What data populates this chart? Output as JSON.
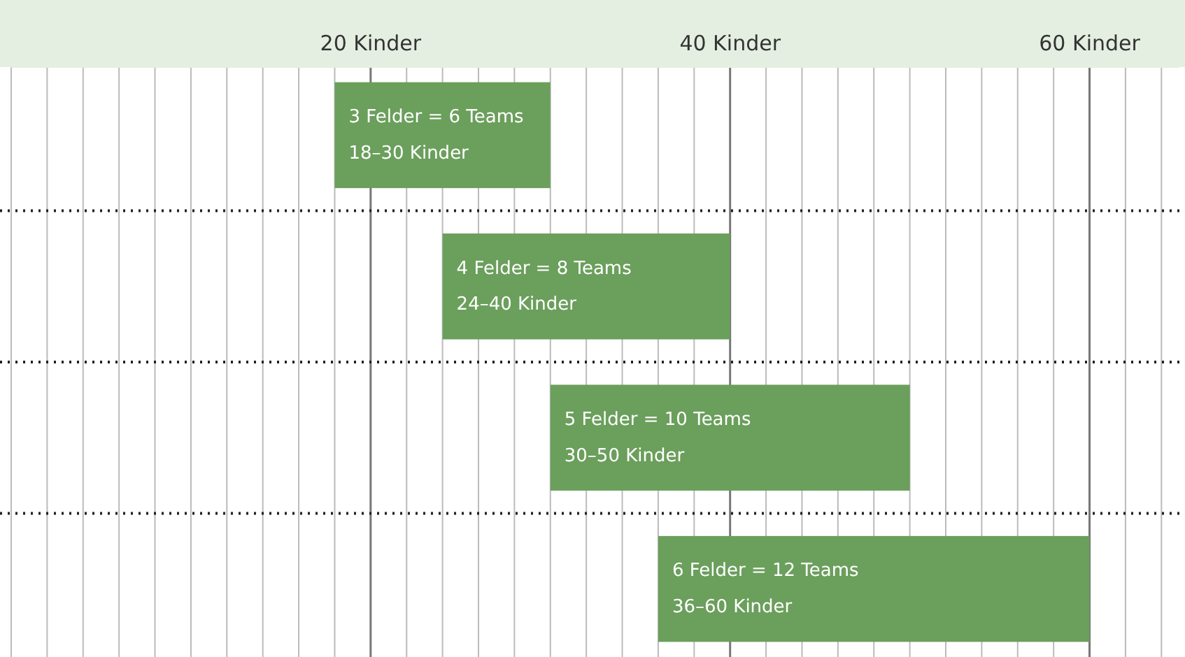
{
  "chart_data": {
    "type": "bar",
    "orientation": "horizontal",
    "categories": [
      null,
      null,
      null,
      null
    ],
    "base": [
      18,
      24,
      30,
      36
    ],
    "values": [
      12,
      16,
      20,
      24
    ],
    "color": "#6b9f5c",
    "value_labels": [
      "18–30 Kinder",
      "24–40 Kinder",
      "30–50 Kinder",
      "36–60 Kinder"
    ],
    "annotations": [
      "3 Felder = 6 Teams",
      "4 Felder = 8 Teams",
      "5 Felder = 10 Teams",
      "6 Felder = 12 Teams"
    ],
    "xlim": [
      0,
      65
    ],
    "xticks": [
      {
        "value": 0,
        "label": null
      },
      {
        "value": 2,
        "label": null
      },
      {
        "value": 4,
        "label": null
      },
      {
        "value": 6,
        "label": null
      },
      {
        "value": 8,
        "label": null
      },
      {
        "value": 10,
        "label": null
      },
      {
        "value": 12,
        "label": null
      },
      {
        "value": 14,
        "label": null
      },
      {
        "value": 16,
        "label": null
      },
      {
        "value": 18,
        "label": null
      },
      {
        "value": 20,
        "label": "20 Kinder"
      },
      {
        "value": 22,
        "label": null
      },
      {
        "value": 24,
        "label": null
      },
      {
        "value": 26,
        "label": null
      },
      {
        "value": 28,
        "label": null
      },
      {
        "value": 30,
        "label": null
      },
      {
        "value": 32,
        "label": null
      },
      {
        "value": 34,
        "label": null
      },
      {
        "value": 36,
        "label": null
      },
      {
        "value": 38,
        "label": null
      },
      {
        "value": 40,
        "label": "40 Kinder"
      },
      {
        "value": 42,
        "label": null
      },
      {
        "value": 44,
        "label": null
      },
      {
        "value": 46,
        "label": null
      },
      {
        "value": 48,
        "label": null
      },
      {
        "value": 50,
        "label": null
      },
      {
        "value": 52,
        "label": null
      },
      {
        "value": 54,
        "label": null
      },
      {
        "value": 56,
        "label": null
      },
      {
        "value": 58,
        "label": null
      },
      {
        "value": 60,
        "label": "60 Kinder"
      },
      {
        "value": 62,
        "label": null
      },
      {
        "value": 64,
        "label": null
      }
    ],
    "grid": "x"
  }
}
